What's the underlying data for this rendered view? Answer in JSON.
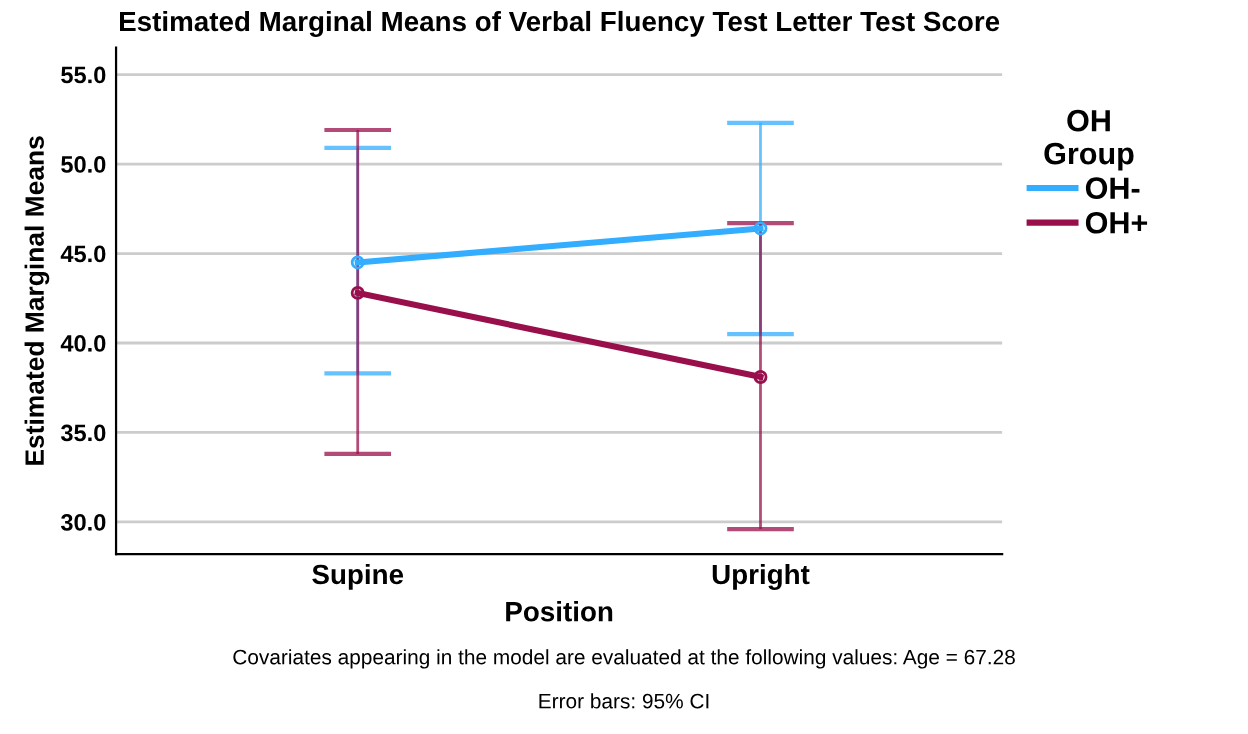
{
  "chart_data": {
    "type": "line",
    "title": "Estimated Marginal Means of Verbal Fluency Test Letter Test Score",
    "xlabel": "Position",
    "ylabel": "Estimated Marginal Means",
    "legend_title": "OH\nGroup",
    "categories": [
      "Supine",
      "Upright"
    ],
    "series": [
      {
        "name": "OH-",
        "color": "#33adff",
        "values": [
          44.5,
          46.4
        ],
        "errors": [
          [
            38.3,
            50.9
          ],
          [
            40.5,
            52.3
          ]
        ]
      },
      {
        "name": "OH+",
        "color": "#990f4b",
        "values": [
          42.8,
          38.1
        ],
        "errors": [
          [
            33.8,
            51.9
          ],
          [
            29.6,
            46.7
          ]
        ]
      }
    ],
    "ylim": [
      28.2,
      56.5
    ],
    "yticks": [
      {
        "value": 30,
        "label": "30.0"
      },
      {
        "value": 35,
        "label": "35.0"
      },
      {
        "value": 40,
        "label": "40.0"
      },
      {
        "value": 45,
        "label": "45.0"
      },
      {
        "value": 50,
        "label": "50.0"
      },
      {
        "value": 55,
        "label": "55.0"
      }
    ],
    "grid": "y",
    "legend": "right",
    "marker": "circle",
    "annotations": [
      "Covariates appearing in the model are evaluated at the following values: Age = 67.28",
      "Error bars: 95% CI"
    ]
  }
}
